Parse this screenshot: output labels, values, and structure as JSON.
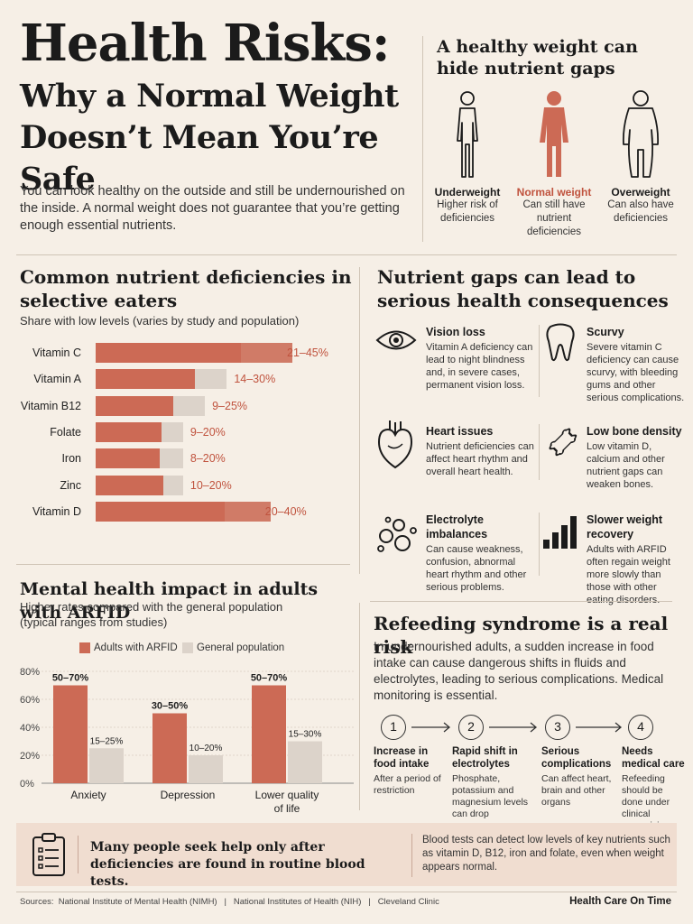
{
  "header": {
    "title_line1": "Health Risks:",
    "title_line2": "Why a Normal Weight Doesn’t Mean You’re Safe",
    "intro": "You can look healthy on the outside and still be undernourished on the inside. A normal weight does not guarantee that you’re getting enough essential nutrients."
  },
  "healthy_weight": {
    "title": "A healthy weight can hide nutrient gaps",
    "figures": [
      {
        "label": "Underweight",
        "desc": "Higher risk of deficiencies",
        "color": "#1b1b1b",
        "icon": "person-thin-outline-icon"
      },
      {
        "label": "Normal weight",
        "desc": "Can still have nutrient deficiencies",
        "color": "#c0533e",
        "icon": "person-filled-icon"
      },
      {
        "label": "Overweight",
        "desc": "Can also have deficiencies",
        "color": "#1b1b1b",
        "icon": "person-wide-outline-icon"
      }
    ]
  },
  "deficiencies": {
    "title": "Common nutrient deficiencies in selective eaters",
    "subtitle": "Share with low levels (varies by study and population)"
  },
  "consequences": {
    "title": "Nutrient gaps can lead to serious health consequences",
    "items": [
      {
        "title": "Vision loss",
        "body": "Vitamin A deficiency can lead to night blindness and, in severe cases, permanent vision loss.",
        "icon": "eye-icon"
      },
      {
        "title": "Scurvy",
        "body": "Severe vitamin C deficiency can cause scurvy, with bleeding gums and other serious complications.",
        "icon": "tooth-icon"
      },
      {
        "title": "Heart issues",
        "body": "Nutrient deficiencies can affect heart rhythm and overall heart health.",
        "icon": "heart-icon"
      },
      {
        "title": "Low bone density",
        "body": "Low vitamin D, calcium and other nutrient gaps can weaken bones.",
        "icon": "bone-icon"
      },
      {
        "title": "Electrolyte imbalances",
        "body": "Can cause weakness, confusion, abnormal heart rhythm and other serious problems.",
        "icon": "bubbles-icon"
      },
      {
        "title": "Slower weight recovery",
        "body": "Adults with ARFID often regain weight more slowly than those with other eating disorders.",
        "icon": "bar-chart-icon"
      }
    ]
  },
  "mental": {
    "title": "Mental health impact in adults with ARFID",
    "subtitle": "Higher rates compared with the general population (typical ranges from studies)"
  },
  "refeeding": {
    "title": "Refeeding syndrome is a real risk",
    "body": "In undernourished adults, a sudden increase in food intake can cause dangerous shifts in fluids and electrolytes, leading to serious complications. Medical monitoring is essential.",
    "steps": [
      {
        "num": "1",
        "title": "Increase in food intake",
        "body": "After a period of restriction"
      },
      {
        "num": "2",
        "title": "Rapid shift in electrolytes",
        "body": "Phosphate, potassium and magnesium levels can drop"
      },
      {
        "num": "3",
        "title": "Serious complications",
        "body": "Can affect heart, brain and other organs"
      },
      {
        "num": "4",
        "title": "Needs medical care",
        "body": "Refeeding should be done under clinical supervision"
      }
    ]
  },
  "callout": {
    "main": "Many people seek help only after deficiencies are found in routine blood tests.",
    "side": "Blood tests can detect low levels of key nutrients such as vitamin D, B12, iron and folate, even when weight appears normal.",
    "icon": "clipboard-icon"
  },
  "footer": {
    "sources": "Sources:  National Institute of Mental Health (NIMH)   |   National Institutes of Health (NIH)   |   Cleveland Clinic",
    "brand": "Health Care On Time"
  },
  "colors": {
    "accent": "#cc6a55",
    "accent_text": "#c0533e",
    "neutral_bar": "#dcd3ca",
    "background": "#f6efe6"
  },
  "chart_data": [
    {
      "type": "bar",
      "orientation": "horizontal",
      "title": "Common nutrient deficiencies in selective eaters",
      "subtitle": "Share with low levels (varies by study and population)",
      "categories": [
        "Vitamin C",
        "Vitamin A",
        "Vitamin B12",
        "Folate",
        "Iron",
        "Zinc",
        "Vitamin D"
      ],
      "low": [
        21,
        14,
        9,
        9,
        8,
        10,
        20
      ],
      "high": [
        45,
        30,
        25,
        20,
        20,
        20,
        40
      ],
      "labels": [
        "21–45%",
        "14–30%",
        "9–25%",
        "9–20%",
        "8–20%",
        "10–20%",
        "20–40%"
      ],
      "xlim": [
        0,
        45
      ]
    },
    {
      "type": "bar",
      "title": "Mental health impact in adults with ARFID",
      "categories": [
        "Anxiety",
        "Depression",
        "Lower quality of life"
      ],
      "series": [
        {
          "name": "Adults with ARFID",
          "values": [
            70,
            50,
            70
          ],
          "labels": [
            "50–70%",
            "30–50%",
            "50–70%"
          ],
          "color": "#cc6a55"
        },
        {
          "name": "General population",
          "values": [
            25,
            20,
            30
          ],
          "labels": [
            "15–25%",
            "10–20%",
            "15–30%"
          ],
          "color": "#dcd3ca"
        }
      ],
      "yticks": [
        "0%",
        "20%",
        "40%",
        "60%",
        "80%"
      ],
      "ylim": [
        0,
        80
      ],
      "legend": "top"
    }
  ]
}
